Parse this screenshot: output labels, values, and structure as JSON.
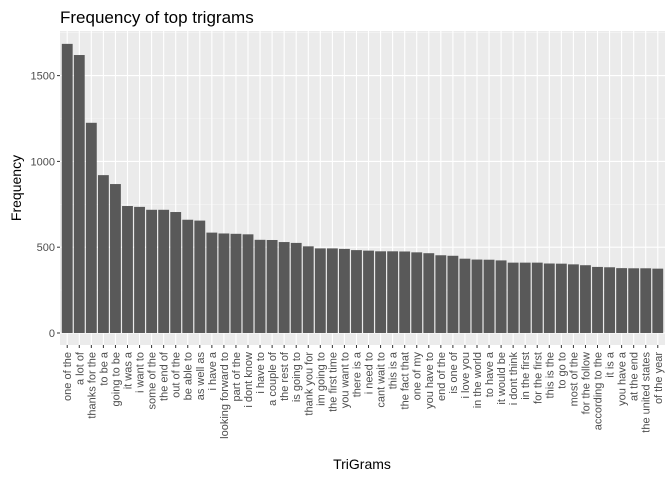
{
  "chart_data": {
    "type": "bar",
    "title": "Frequency of top trigrams",
    "xlabel": "TriGrams",
    "ylabel": "Frequency",
    "ylim": [
      -70,
      1760
    ],
    "yticks": [
      0,
      500,
      1000,
      1500
    ],
    "grid": true,
    "legend": "none",
    "categories": [
      "one of the",
      "a lot of",
      "thanks for the",
      "to be a",
      "going to be",
      "it was a",
      "i want to",
      "some of the",
      "the end of",
      "out of the",
      "be able to",
      "as well as",
      "i have a",
      "looking forward to",
      "part of the",
      "i dont know",
      "i have to",
      "a couple of",
      "the rest of",
      "is going to",
      "thank you for",
      "im going to",
      "the first time",
      "you want to",
      "there is a",
      "i need to",
      "cant wait to",
      "this is a",
      "the fact that",
      "one of my",
      "you have to",
      "end of the",
      "is one of",
      "i love you",
      "in the world",
      "to have a",
      "it would be",
      "i dont think",
      "in the first",
      "for the first",
      "this is the",
      "to go to",
      "most of the",
      "for the follow",
      "according to the",
      "it is a",
      "you have a",
      "at the end",
      "the united states",
      "of the year"
    ],
    "values": [
      1685,
      1620,
      1225,
      920,
      868,
      740,
      735,
      718,
      718,
      705,
      660,
      655,
      585,
      580,
      578,
      575,
      543,
      542,
      530,
      525,
      505,
      493,
      493,
      490,
      483,
      480,
      476,
      476,
      475,
      470,
      465,
      453,
      450,
      433,
      428,
      427,
      423,
      410,
      410,
      410,
      405,
      404,
      400,
      395,
      385,
      383,
      378,
      377,
      377,
      375
    ]
  },
  "colors": {
    "panel": "#ebebeb",
    "grid_major": "#ffffff",
    "grid_minor": "#f5f5f5",
    "bar": "#595959",
    "tick": "#333333",
    "tick_text": "#4d4d4d"
  }
}
